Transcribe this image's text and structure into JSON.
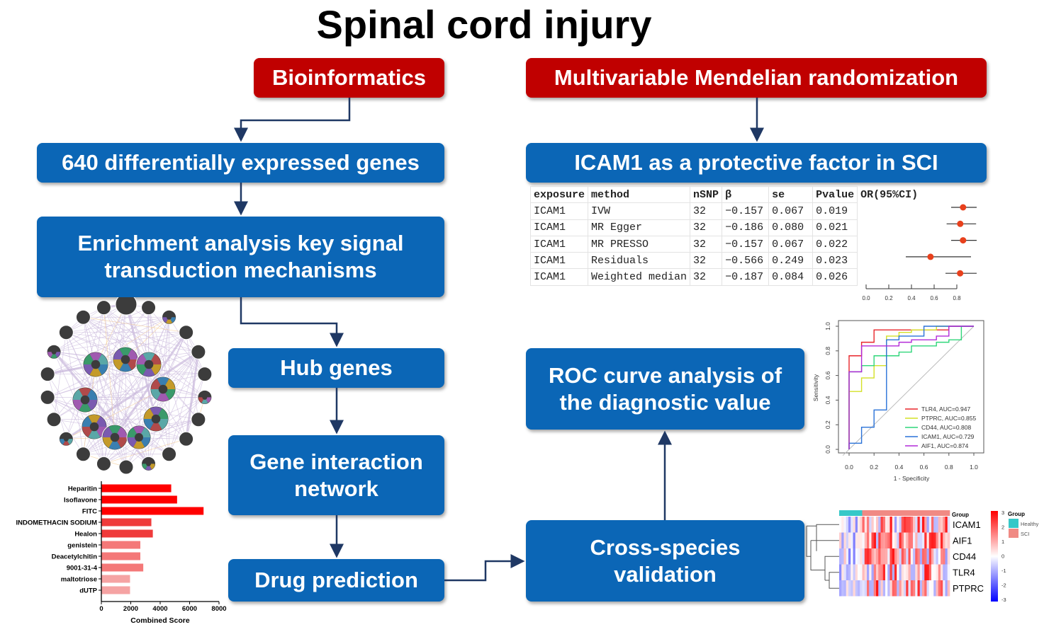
{
  "title": "Spinal cord injury",
  "boxes": {
    "bioinformatics": "Bioinformatics",
    "mmr": "Multivariable Mendelian randomization",
    "degs": "640 differentially expressed genes",
    "icam1": "ICAM1 as a protective factor in SCI",
    "enrichment": "Enrichment analysis key signal transduction mechanisms",
    "hub": "Hub genes",
    "interaction": "Gene interaction network",
    "drug": "Drug prediction",
    "roc": "ROC curve analysis of the diagnostic value",
    "cross": "Cross-species validation"
  },
  "mr_table": {
    "headers": [
      "exposure",
      "method",
      "nSNP",
      "β",
      "se",
      "Pvalue",
      "OR(95%CI)"
    ],
    "rows": [
      {
        "exposure": "ICAM1",
        "method": "IVW",
        "nsnp": "32",
        "beta": "−0.157",
        "se": "0.067",
        "p": "0.019",
        "or": 0.855,
        "lo": 0.75,
        "hi": 0.975
      },
      {
        "exposure": "ICAM1",
        "method": "MR Egger",
        "nsnp": "32",
        "beta": "−0.186",
        "se": "0.080",
        "p": "0.021",
        "or": 0.83,
        "lo": 0.71,
        "hi": 0.97
      },
      {
        "exposure": "ICAM1",
        "method": "MR PRESSO",
        "nsnp": "32",
        "beta": "−0.157",
        "se": "0.067",
        "p": "0.022",
        "or": 0.855,
        "lo": 0.75,
        "hi": 0.975
      },
      {
        "exposure": "ICAM1",
        "method": "Residuals",
        "nsnp": "32",
        "beta": "−0.566",
        "se": "0.249",
        "p": "0.023",
        "or": 0.568,
        "lo": 0.35,
        "hi": 0.925
      },
      {
        "exposure": "ICAM1",
        "method": "Weighted median",
        "nsnp": "32",
        "beta": "−0.187",
        "se": "0.084",
        "p": "0.026",
        "or": 0.829,
        "lo": 0.7,
        "hi": 0.975
      }
    ],
    "axis_ticks": [
      "0.0",
      "0.2",
      "0.4",
      "0.6",
      "0.8"
    ],
    "point_color": "#e8401c"
  },
  "chart_data": [
    {
      "type": "bar",
      "orientation": "horizontal",
      "xlabel": "Combined Score",
      "xlim": [
        0,
        8000
      ],
      "xticks": [
        "0",
        "2000",
        "4000",
        "6000",
        "8000"
      ],
      "categories": [
        "Heparitin",
        "Isoflavone",
        "FITC",
        "INDOMETHACIN SODIUM",
        "Healon",
        "genistein",
        "Deacetylchitin",
        "9001-31-4",
        "maltotriose",
        "dUTP"
      ],
      "values": [
        4750,
        5150,
        6950,
        3400,
        3500,
        2650,
        2650,
        2850,
        1950,
        1950
      ],
      "colors": [
        "#ff0000",
        "#ff0000",
        "#ff0000",
        "#ef3b3b",
        "#ef3b3b",
        "#f47878",
        "#f47878",
        "#f47878",
        "#f5a3a3",
        "#f5a3a3"
      ]
    },
    {
      "type": "line",
      "xlabel": "1 - Specificity",
      "ylabel": "Sensitivity",
      "xlim": [
        0,
        1
      ],
      "ylim": [
        0,
        1
      ],
      "xticks": [
        "0.0",
        "0.2",
        "0.4",
        "0.6",
        "0.8",
        "1.0"
      ],
      "yticks": [
        "0.0",
        "0.2",
        "0.4",
        "0.6",
        "0.8",
        "1.0"
      ],
      "legend": "bottom-right",
      "series": [
        {
          "name": "TLR4, AUC=0.947",
          "color": "#e8262b",
          "points": [
            [
              0,
              0
            ],
            [
              0,
              0.76
            ],
            [
              0.1,
              0.76
            ],
            [
              0.1,
              0.87
            ],
            [
              0.2,
              0.87
            ],
            [
              0.2,
              0.97
            ],
            [
              0.8,
              0.97
            ],
            [
              0.8,
              1
            ],
            [
              1,
              1
            ]
          ]
        },
        {
          "name": "PTPRC, AUC=0.855",
          "color": "#d4e027",
          "points": [
            [
              0,
              0
            ],
            [
              0,
              0.47
            ],
            [
              0.1,
              0.47
            ],
            [
              0.1,
              0.58
            ],
            [
              0.2,
              0.58
            ],
            [
              0.2,
              0.68
            ],
            [
              0.3,
              0.68
            ],
            [
              0.3,
              0.92
            ],
            [
              0.4,
              0.92
            ],
            [
              0.4,
              0.95
            ],
            [
              0.5,
              0.95
            ],
            [
              0.5,
              0.97
            ],
            [
              0.7,
              0.97
            ],
            [
              0.7,
              1
            ],
            [
              1,
              1
            ]
          ]
        },
        {
          "name": "CD44, AUC=0.808",
          "color": "#2fd67a",
          "points": [
            [
              0,
              0
            ],
            [
              0,
              0.63
            ],
            [
              0.1,
              0.63
            ],
            [
              0.1,
              0.68
            ],
            [
              0.2,
              0.68
            ],
            [
              0.2,
              0.76
            ],
            [
              0.4,
              0.76
            ],
            [
              0.4,
              0.79
            ],
            [
              0.5,
              0.79
            ],
            [
              0.5,
              0.84
            ],
            [
              0.7,
              0.84
            ],
            [
              0.7,
              0.87
            ],
            [
              0.8,
              0.87
            ],
            [
              0.8,
              0.89
            ],
            [
              0.9,
              0.89
            ],
            [
              0.9,
              1
            ],
            [
              1,
              1
            ]
          ]
        },
        {
          "name": "ICAM1, AUC=0.729",
          "color": "#2a72d8",
          "points": [
            [
              0,
              0
            ],
            [
              0,
              0.05
            ],
            [
              0.1,
              0.05
            ],
            [
              0.1,
              0.18
            ],
            [
              0.2,
              0.18
            ],
            [
              0.2,
              0.32
            ],
            [
              0.3,
              0.32
            ],
            [
              0.3,
              0.89
            ],
            [
              0.4,
              0.89
            ],
            [
              0.4,
              0.92
            ],
            [
              0.6,
              0.92
            ],
            [
              0.6,
              1
            ],
            [
              1,
              1
            ]
          ]
        },
        {
          "name": "AIF1, AUC=0.874",
          "color": "#b22ad8",
          "points": [
            [
              0,
              0
            ],
            [
              0,
              0.63
            ],
            [
              0.1,
              0.63
            ],
            [
              0.1,
              0.84
            ],
            [
              0.4,
              0.84
            ],
            [
              0.4,
              0.87
            ],
            [
              0.5,
              0.87
            ],
            [
              0.5,
              0.89
            ],
            [
              0.7,
              0.89
            ],
            [
              0.7,
              0.92
            ],
            [
              0.8,
              0.92
            ],
            [
              0.8,
              1
            ],
            [
              1,
              1
            ]
          ]
        }
      ]
    },
    {
      "type": "heatmap",
      "rows": [
        "ICAM1",
        "AIF1",
        "CD44",
        "TLR4",
        "PTPRC"
      ],
      "group_label": "Group",
      "groups": [
        {
          "name": "Healthy",
          "color": "#36c8c8",
          "n": 10
        },
        {
          "name": "SCI",
          "color": "#f08a84",
          "n": 38
        }
      ],
      "scale_ticks": [
        "3",
        "2",
        "1",
        "0",
        "-1",
        "-2",
        "-3"
      ],
      "scale_colors": [
        "#ff0000",
        "#ffffff",
        "#0000ff"
      ]
    }
  ]
}
